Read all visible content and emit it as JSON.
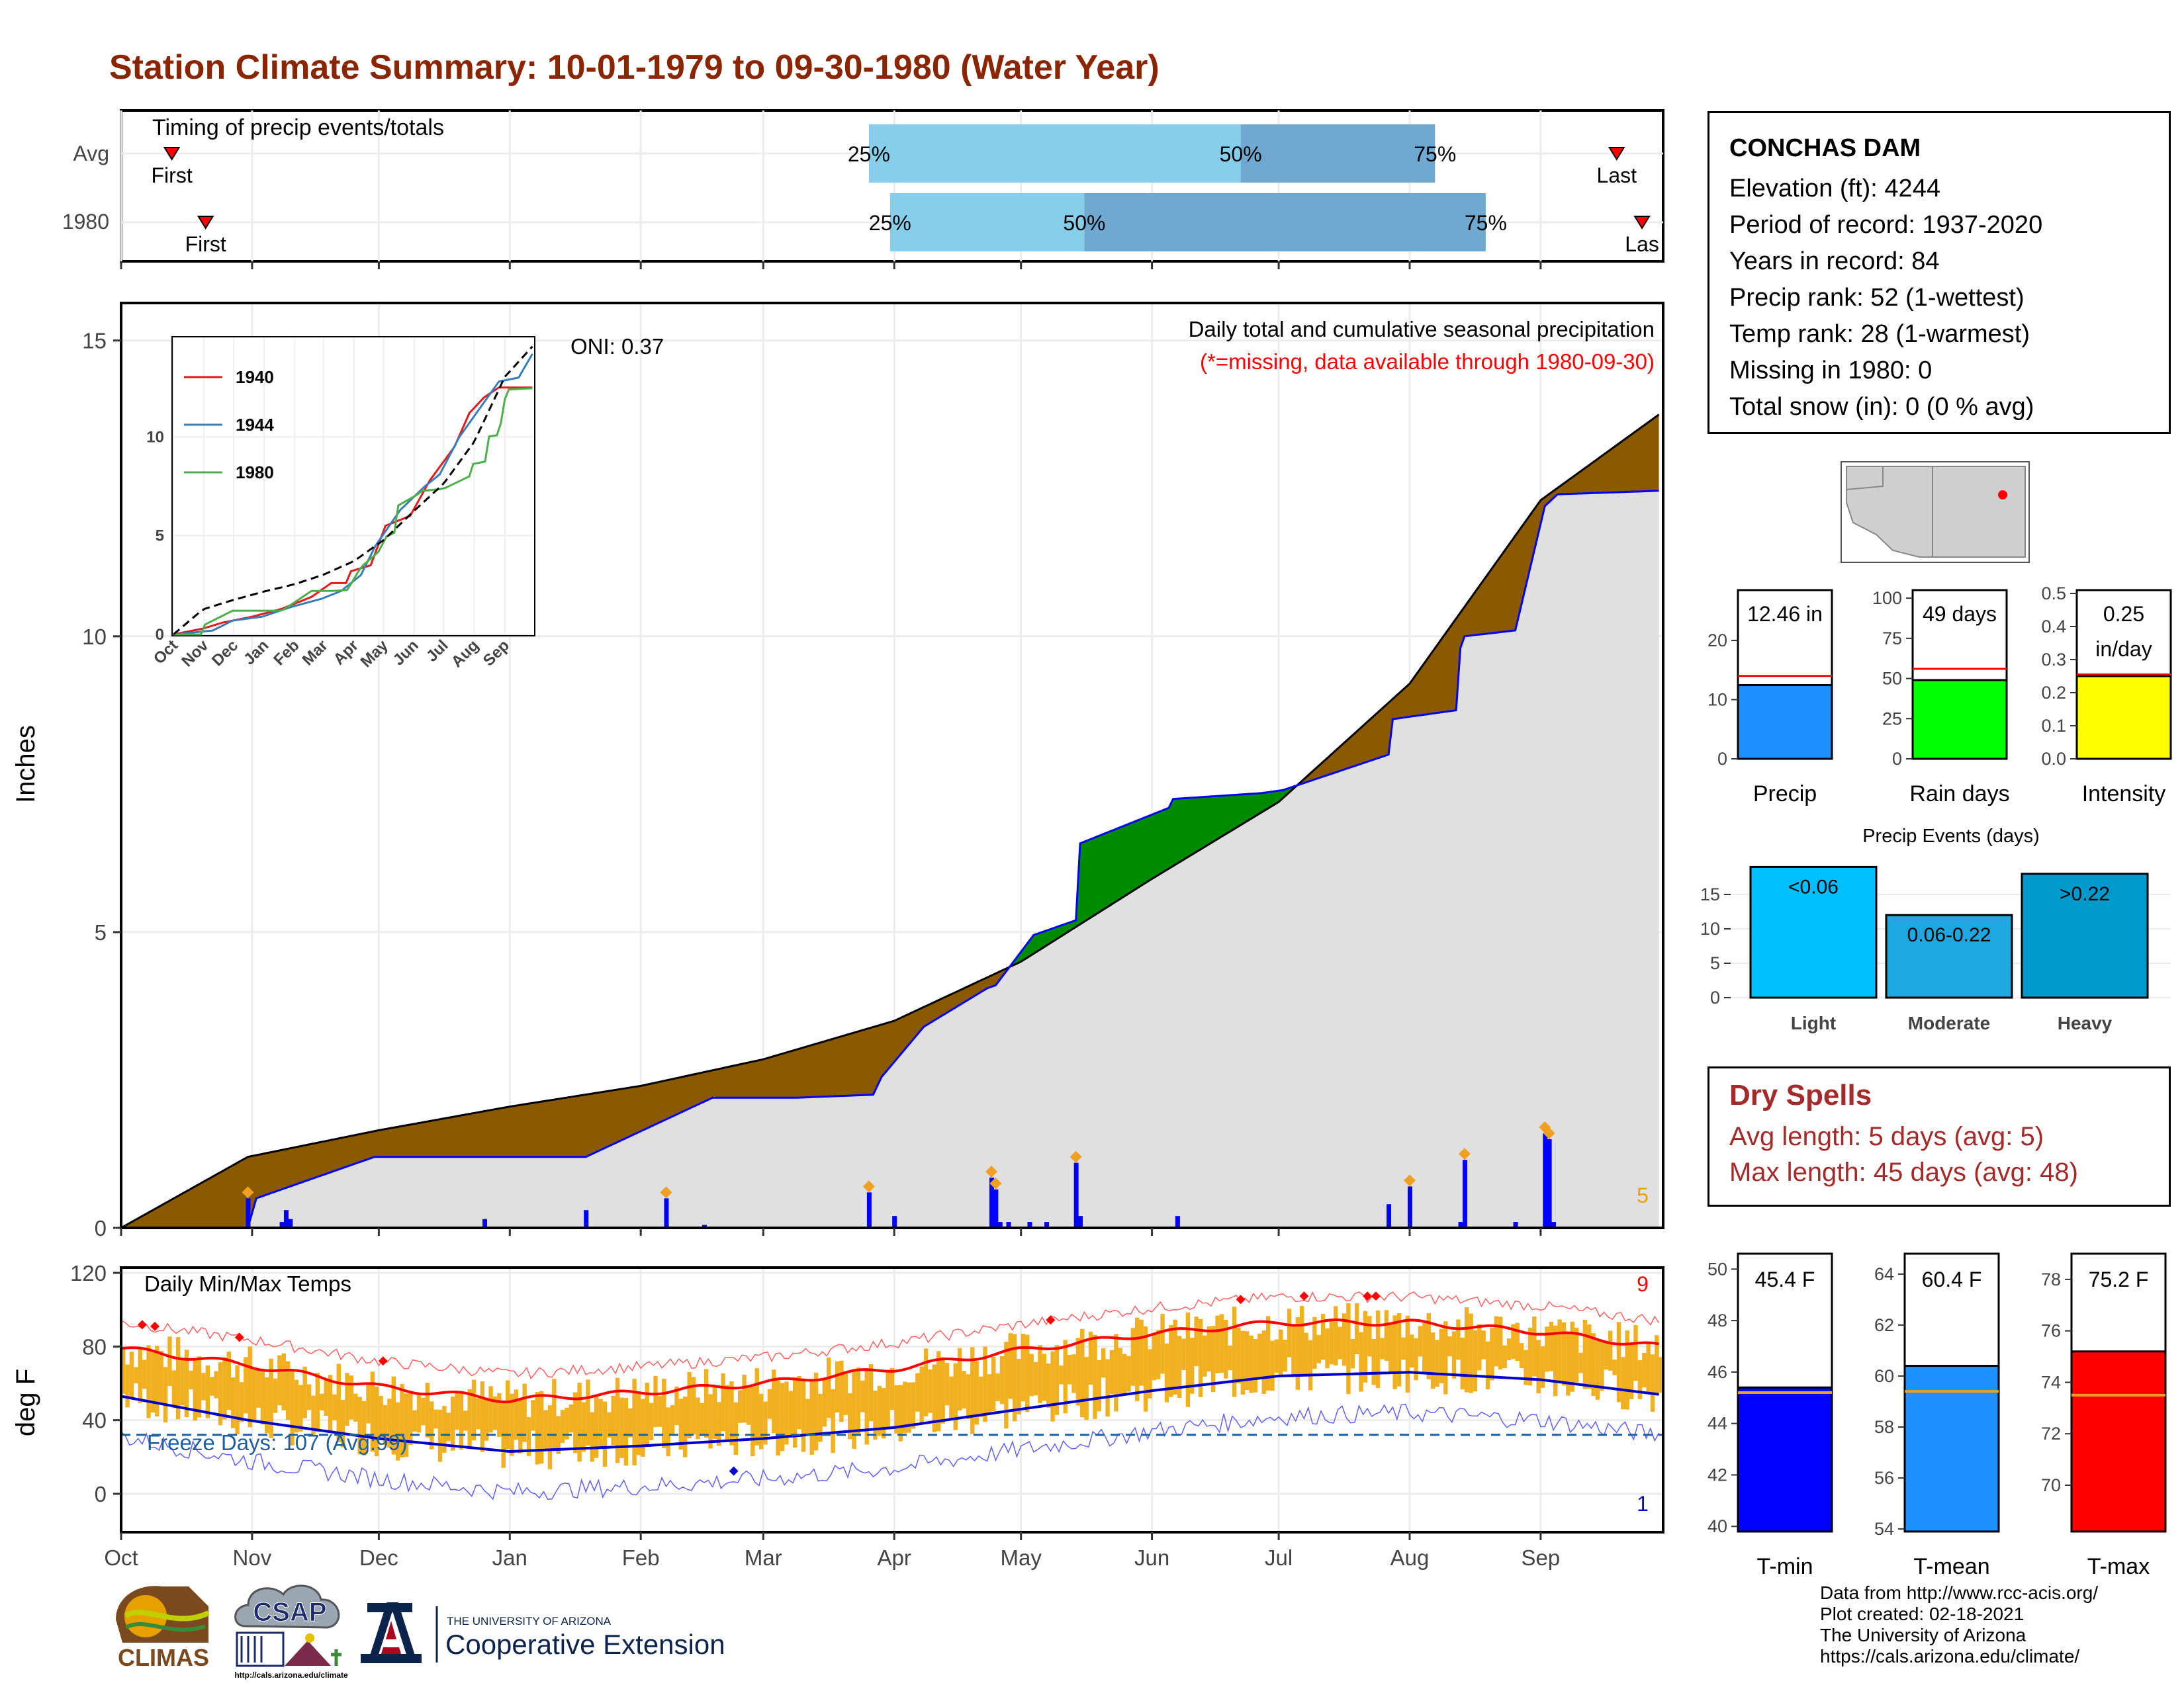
{
  "title": "Station Climate Summary: 10-01-1979 to 09-30-1980 (Water Year)",
  "colors": {
    "title": "#8b2500",
    "precip_surplus": "#8b5a00",
    "precip_deficit_green": "#008b00",
    "cum_avg_fill": "#e0e0e0",
    "daily_precip_bar": "#0000ff",
    "temp_bar": "#f0b020",
    "max_normal": "#ff0000",
    "min_normal": "#0000cc",
    "dry_spells": "#a52a2a"
  },
  "timing": {
    "label": "Timing of precip events/totals",
    "rows": [
      {
        "name": "Avg",
        "first_label": "First",
        "last_label": "Last",
        "p25": "25%",
        "p50": "50%",
        "p75": "75%",
        "first_day": 12,
        "last_day": 354,
        "q25_day": 177,
        "q50_day": 265,
        "q75_day": 311
      },
      {
        "name": "1980",
        "first_label": "First",
        "last_label": "Las",
        "p25": "25%",
        "p50": "50%",
        "p75": "75%",
        "first_day": 20,
        "last_day": 360,
        "q25_day": 182,
        "q50_day": 228,
        "q75_day": 323
      }
    ]
  },
  "precip_panel": {
    "ylabel": "Inches",
    "subtitle": "Daily total and cumulative seasonal precipitation",
    "missing_note": "(*=missing, data available through 1980-09-30)",
    "oni": "ONI: 0.37",
    "count_label": "5",
    "y_ticks": [
      "0",
      "5",
      "10",
      "15"
    ],
    "month_labels": [
      "Oct",
      "Nov",
      "Dec",
      "Jan",
      "Feb",
      "Mar",
      "Apr",
      "May",
      "Jun",
      "Jul",
      "Aug",
      "Sep"
    ]
  },
  "inset": {
    "legend": [
      "1940",
      "1944",
      "1980"
    ],
    "legend_colors": [
      "#e41a1c",
      "#377eb8",
      "#4daf4a"
    ],
    "y_ticks": [
      "0",
      "5",
      "10"
    ],
    "x_labels": [
      "Oct",
      "Nov",
      "Dec",
      "Jan",
      "Feb",
      "Mar",
      "Apr",
      "May",
      "Jun",
      "Jul",
      "Aug",
      "Sep"
    ]
  },
  "temp_panel": {
    "ylabel": "deg F",
    "label": "Daily Min/Max Temps",
    "freeze": "Freeze Days: 107 (Avg:99)",
    "hot_count": "9",
    "cold_count": "1",
    "y_ticks": [
      "0",
      "40",
      "80",
      "120"
    ],
    "x_labels": [
      "Oct",
      "Nov",
      "Dec",
      "Jan",
      "Feb",
      "Mar",
      "Apr",
      "May",
      "Jun",
      "Jul",
      "Aug",
      "Sep"
    ]
  },
  "station": {
    "name": "CONCHAS DAM",
    "elevation": "Elevation (ft): 4244",
    "period": "Period of record: 1937-2020",
    "years": "Years in record: 84",
    "precip_rank": "Precip rank: 52 (1-wettest)",
    "temp_rank": "Temp rank: 28 (1-warmest)",
    "missing": "Missing in 1980: 0",
    "snow": "Total snow (in): 0 (0 % avg)"
  },
  "mini_bars": {
    "precip": {
      "label": "Precip",
      "value_label": "12.46 in",
      "ticks": [
        "0",
        "10",
        "20"
      ]
    },
    "rain_days": {
      "label": "Rain days",
      "value_label": "49 days",
      "ticks": [
        "0",
        "25",
        "50",
        "75",
        "100"
      ]
    },
    "intensity": {
      "label": "Intensity",
      "value_label": "0.25",
      "value_label2": "in/day",
      "ticks": [
        "0.0",
        "0.1",
        "0.2",
        "0.3",
        "0.4",
        "0.5"
      ]
    }
  },
  "precip_events": {
    "title": "Precip Events (days)",
    "categories": [
      "Light",
      "Moderate",
      "Heavy"
    ],
    "bar_labels": [
      "<0.06",
      "0.06-0.22",
      ">0.22"
    ],
    "ticks": [
      "0",
      "5",
      "10",
      "15"
    ]
  },
  "dry_spells": {
    "title": "Dry Spells",
    "avg": "Avg length: 5 days (avg: 5)",
    "max": "Max length: 45 days (avg: 48)"
  },
  "temp_bars": {
    "tmin": {
      "label": "T-min",
      "value_label": "45.4 F",
      "ticks": [
        "40",
        "42",
        "44",
        "46",
        "48",
        "50"
      ]
    },
    "tmean": {
      "label": "T-mean",
      "value_label": "60.4 F",
      "ticks": [
        "54",
        "56",
        "58",
        "60",
        "62",
        "64"
      ]
    },
    "tmax": {
      "label": "T-max",
      "value_label": "75.2 F",
      "ticks": [
        "70",
        "72",
        "74",
        "76",
        "78"
      ]
    }
  },
  "credits": {
    "line1": "Data from http://www.rcc-acis.org/",
    "line2": "Plot created: 02-18-2021",
    "line3": "The University of Arizona",
    "line4": "https://cals.arizona.edu/climate/"
  },
  "logos": {
    "climas": "CLIMAS",
    "csap": "CSAP",
    "csap_url": "http://cals.arizona.edu/climate",
    "ua_small": "THE UNIVERSITY OF ARIZONA",
    "ua_big": "Cooperative Extension"
  },
  "chart_data": [
    {
      "type": "area",
      "title": "Daily total and cumulative seasonal precipitation",
      "ylabel": "Inches",
      "ylim": [
        0,
        15
      ],
      "x_labels": [
        "Oct",
        "Nov",
        "Dec",
        "Jan",
        "Feb",
        "Mar",
        "Apr",
        "May",
        "Jun",
        "Jul",
        "Aug",
        "Sep"
      ],
      "series": [
        {
          "name": "cumulative average",
          "x_day": [
            0,
            30,
            61,
            92,
            123,
            152,
            183,
            213,
            244,
            274,
            305,
            336,
            365
          ],
          "values": [
            0,
            1.2,
            1.65,
            2.05,
            2.4,
            2.85,
            3.5,
            4.5,
            5.9,
            7.2,
            9.2,
            12.3,
            13.8
          ]
        },
        {
          "name": "1980 cumulative",
          "x_day": [
            0,
            30,
            32,
            60,
            90,
            110,
            140,
            160,
            178,
            180,
            190,
            205,
            207,
            216,
            220,
            226,
            227,
            248,
            249,
            270,
            275,
            300,
            301,
            316,
            317,
            318,
            330,
            337,
            340,
            364
          ],
          "values": [
            0,
            0,
            0.5,
            1.2,
            1.2,
            1.2,
            2.2,
            2.2,
            2.25,
            2.55,
            3.4,
            4.05,
            4.1,
            4.95,
            5.05,
            5.2,
            6.5,
            7.1,
            7.25,
            7.35,
            7.4,
            8.0,
            8.6,
            8.75,
            9.8,
            10.0,
            10.1,
            12.2,
            12.4,
            12.46
          ]
        }
      ],
      "daily_precip": {
        "x_day": [
          30,
          38,
          39,
          40,
          86,
          110,
          129,
          138,
          177,
          183,
          206,
          207,
          208,
          210,
          215,
          219,
          226,
          227,
          250,
          300,
          305,
          317,
          318,
          330,
          337,
          338,
          339
        ],
        "values": [
          0.5,
          0.1,
          0.3,
          0.15,
          0.15,
          0.3,
          0.5,
          0.05,
          0.6,
          0.2,
          0.85,
          0.65,
          0.1,
          0.1,
          0.1,
          0.1,
          1.1,
          0.2,
          0.2,
          0.4,
          0.7,
          0.1,
          1.15,
          0.1,
          1.6,
          1.5,
          0.1
        ]
      }
    },
    {
      "type": "line",
      "title": "Daily Min/Max Temps",
      "ylabel": "deg F",
      "ylim": [
        -20,
        120
      ],
      "series": [
        {
          "name": "normal max",
          "x_day": [
            0,
            30,
            61,
            92,
            123,
            152,
            183,
            213,
            244,
            274,
            305,
            336,
            364
          ],
          "values": [
            79,
            70,
            58,
            51,
            55,
            60,
            68,
            78,
            87,
            93,
            93,
            88,
            80
          ]
        },
        {
          "name": "normal min",
          "x_day": [
            0,
            30,
            61,
            92,
            123,
            152,
            183,
            213,
            244,
            274,
            305,
            336,
            364
          ],
          "values": [
            53,
            40,
            30,
            23,
            26,
            30,
            36,
            46,
            56,
            64,
            66,
            62,
            54
          ]
        },
        {
          "name": "freeze threshold",
          "values": [
            32
          ]
        }
      ]
    }
  ]
}
